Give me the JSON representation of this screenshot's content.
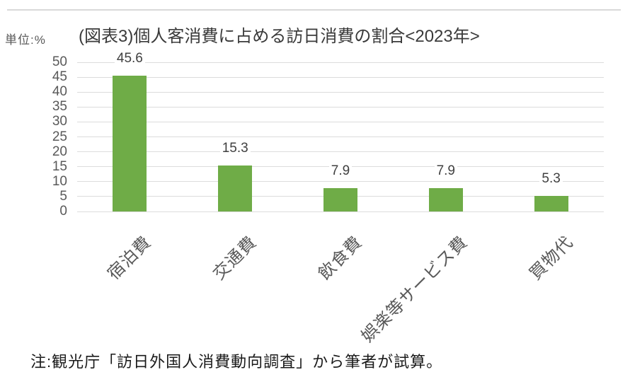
{
  "header": {
    "unit_label": "単位:%",
    "title": "(図表3)個人客消費に占める訪日消費の割合<2023年>"
  },
  "chart_data": {
    "type": "bar",
    "title": "(図表3)個人客消費に占める訪日消費の割合<2023年>",
    "unit_label": "単位:%",
    "categories": [
      "宿泊費",
      "交通費",
      "飲食費",
      "娯楽等サービス費",
      "買物代"
    ],
    "values": [
      45.6,
      15.3,
      7.9,
      7.9,
      5.3
    ],
    "value_labels": [
      "45.6",
      "15.3",
      "7.9",
      "7.9",
      "5.3"
    ],
    "xlabel": "",
    "ylabel": "",
    "ylim": [
      0,
      50
    ],
    "yticks": [
      0,
      5,
      10,
      15,
      20,
      25,
      30,
      35,
      40,
      45,
      50
    ],
    "grid": true,
    "legend_position": "none",
    "bar_color": "#6fac47",
    "gridline_color": "#dcdcdc",
    "tick_label_color": "#595959",
    "value_label_color": "#404040"
  },
  "footer": {
    "note": "注:観光庁「訪日外国人消費動向調査」から筆者が試算。"
  }
}
